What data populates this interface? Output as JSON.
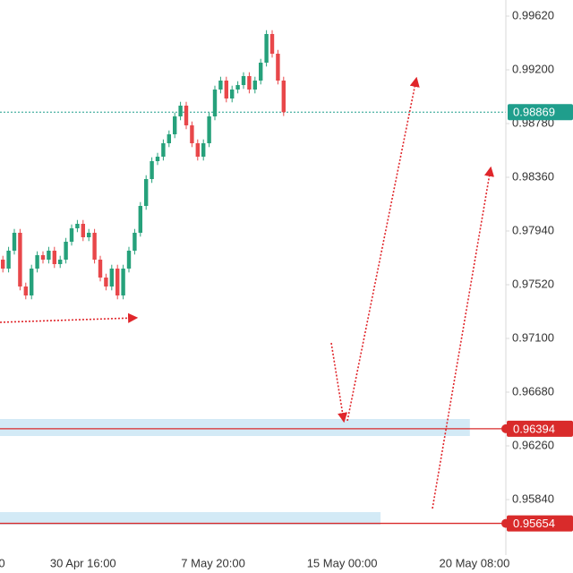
{
  "chart_data": {
    "type": "candlestick",
    "up_color": "#26a17b",
    "down_color": "#e8474a",
    "xlim": [
      -0.5,
      87.78
    ],
    "xticks": [
      {
        "value": -0.2,
        "label": "0"
      },
      {
        "value": 14,
        "label": "30 Apr 16:00"
      },
      {
        "value": 36.7,
        "label": "7 May 20:00"
      },
      {
        "value": 59.2,
        "label": "15 May 00:00"
      },
      {
        "value": 82.3,
        "label": "20 May 08:00"
      }
    ],
    "ylim": [
      0.95406,
      0.99746
    ],
    "yticks": [
      {
        "value": 0.9962,
        "label": "0.99620"
      },
      {
        "value": 0.992,
        "label": "0.99200"
      },
      {
        "value": 0.9878,
        "label": "0.98780"
      },
      {
        "value": 0.9836,
        "label": "0.98360"
      },
      {
        "value": 0.9794,
        "label": "0.97940"
      },
      {
        "value": 0.9752,
        "label": "0.97520"
      },
      {
        "value": 0.971,
        "label": "0.97100"
      },
      {
        "value": 0.9668,
        "label": "0.96680"
      },
      {
        "value": 0.9626,
        "label": "0.96260"
      },
      {
        "value": 0.9584,
        "label": "0.95840"
      }
    ],
    "candles": {
      "open": [
        0.97716,
        0.97646,
        0.97786,
        0.97926,
        0.97506,
        0.97436,
        0.97646,
        0.97751,
        0.97716,
        0.97786,
        0.97681,
        0.97716,
        0.97856,
        0.97961,
        0.97996,
        0.97891,
        0.97926,
        0.97716,
        0.97576,
        0.97506,
        0.97646,
        0.97436,
        0.97646,
        0.97786,
        0.97926,
        0.98136,
        0.98346,
        0.98486,
        0.98521,
        0.98626,
        0.98696,
        0.98836,
        0.9892,
        0.98766,
        0.98626,
        0.98521,
        0.98626,
        0.98836,
        0.99046,
        0.99116,
        0.98976,
        0.99046,
        0.99081,
        0.99151,
        0.99046,
        0.99116,
        0.99256,
        0.9948,
        0.99326,
        0.99116
      ],
      "high": [
        0.97746,
        0.97816,
        0.97956,
        0.97956,
        0.97536,
        0.97676,
        0.97781,
        0.97781,
        0.97816,
        0.97816,
        0.97746,
        0.97886,
        0.97991,
        0.98026,
        0.98026,
        0.97956,
        0.97956,
        0.97746,
        0.97606,
        0.97676,
        0.97676,
        0.97676,
        0.97816,
        0.97956,
        0.98166,
        0.98376,
        0.98516,
        0.98551,
        0.98656,
        0.98726,
        0.98866,
        0.9895,
        0.9895,
        0.98796,
        0.98656,
        0.98656,
        0.98866,
        0.99076,
        0.99146,
        0.99146,
        0.99076,
        0.99111,
        0.99181,
        0.99181,
        0.99146,
        0.99286,
        0.9951,
        0.9951,
        0.99356,
        0.99146
      ],
      "low": [
        0.97616,
        0.97616,
        0.97756,
        0.97476,
        0.97406,
        0.97406,
        0.97616,
        0.97686,
        0.97686,
        0.97651,
        0.97651,
        0.97686,
        0.97826,
        0.97931,
        0.97861,
        0.97861,
        0.97686,
        0.97546,
        0.97476,
        0.97476,
        0.97406,
        0.97406,
        0.97616,
        0.97756,
        0.97896,
        0.98106,
        0.98316,
        0.98456,
        0.98491,
        0.98596,
        0.98666,
        0.98806,
        0.98736,
        0.98596,
        0.98491,
        0.98491,
        0.98596,
        0.98806,
        0.99016,
        0.98946,
        0.98946,
        0.99016,
        0.99051,
        0.99016,
        0.99016,
        0.99086,
        0.99226,
        0.99296,
        0.99086,
        0.98839
      ],
      "close": [
        0.97646,
        0.97786,
        0.97926,
        0.97506,
        0.97436,
        0.97646,
        0.97751,
        0.97716,
        0.97786,
        0.97681,
        0.97716,
        0.97856,
        0.97961,
        0.97996,
        0.97891,
        0.97926,
        0.97716,
        0.97576,
        0.97506,
        0.97646,
        0.97436,
        0.97646,
        0.97786,
        0.97926,
        0.98136,
        0.98346,
        0.98486,
        0.98521,
        0.98626,
        0.98696,
        0.98836,
        0.9892,
        0.98766,
        0.98626,
        0.98521,
        0.98626,
        0.98836,
        0.99046,
        0.99116,
        0.98976,
        0.99046,
        0.99081,
        0.99151,
        0.99046,
        0.99116,
        0.99256,
        0.9948,
        0.99326,
        0.99116,
        0.98869
      ]
    },
    "current_price": {
      "value": 0.98869,
      "color": "#1f9e8c"
    },
    "levels": [
      {
        "value": 0.96394,
        "color": "#d92b2b"
      },
      {
        "value": 0.95654,
        "color": "#d92b2b"
      }
    ],
    "zones": [
      {
        "top": 0.9647,
        "bottom": 0.96337,
        "x_end": 81.5,
        "color": "#d3eaf6"
      },
      {
        "top": 0.95742,
        "bottom": 0.95644,
        "x_end": 65.9,
        "color": "#d3eaf6"
      }
    ]
  }
}
